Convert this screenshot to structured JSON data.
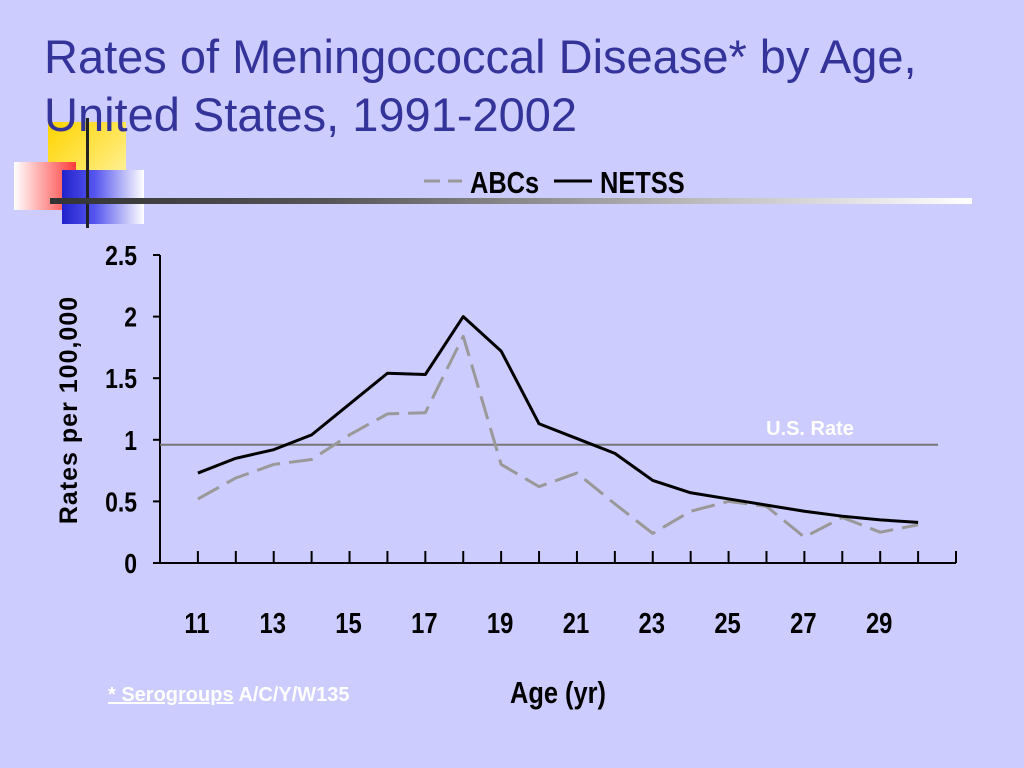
{
  "slide": {
    "title_line1": "Rates of Meningococcal Disease* by Age,",
    "title_line2": "United States, 1991-2002",
    "footnote_a": "* Serogroups",
    "footnote_b": " A/C/Y/W135"
  },
  "colors": {
    "background": "#ccccff",
    "title": "#333399",
    "abcs": "#999999",
    "netss": "#000000",
    "us_rate_line": "#777777",
    "us_rate_label": "#ffffff"
  },
  "chart_data": {
    "type": "line",
    "xlabel": "Age (yr)",
    "ylabel": "Rates per 100,000",
    "xlim": [
      10,
      31
    ],
    "ylim": [
      0,
      2.5
    ],
    "x_ticks": [
      11,
      13,
      15,
      17,
      19,
      21,
      23,
      25,
      27,
      29
    ],
    "y_ticks": [
      0,
      0.5,
      1,
      1.5,
      2,
      2.5
    ],
    "y_tick_labels": [
      "0",
      "0.5",
      "1",
      "1.5",
      "2",
      "2.5"
    ],
    "legend_position": "top-center",
    "x": [
      11,
      12,
      13,
      14,
      15,
      16,
      17,
      18,
      19,
      20,
      21,
      22,
      23,
      24,
      25,
      26,
      27,
      28,
      29,
      30
    ],
    "series": [
      {
        "name": "ABCs",
        "style": "dashed",
        "values": [
          0.52,
          0.69,
          0.8,
          0.84,
          1.04,
          1.21,
          1.22,
          1.84,
          0.8,
          0.62,
          0.73,
          0.48,
          0.24,
          0.42,
          0.5,
          0.46,
          0.21,
          0.37,
          0.25,
          0.31
        ]
      },
      {
        "name": "NETSS",
        "style": "solid",
        "values": [
          0.73,
          0.85,
          0.92,
          1.04,
          1.29,
          1.54,
          1.53,
          2.0,
          1.72,
          1.13,
          1.01,
          0.89,
          0.67,
          0.57,
          0.52,
          0.47,
          0.42,
          0.38,
          0.35,
          0.33
        ]
      }
    ],
    "reference_line": {
      "label": "U.S. Rate",
      "value": 0.96
    }
  }
}
